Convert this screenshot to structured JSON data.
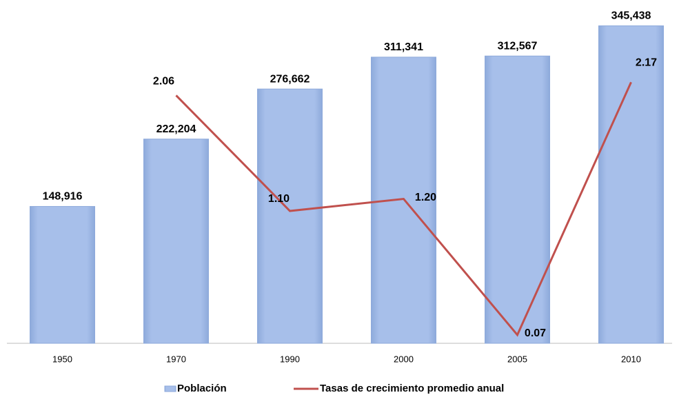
{
  "chart_data": {
    "type": "bar",
    "categories": [
      "1950",
      "1970",
      "1990",
      "2000",
      "2005",
      "2010"
    ],
    "ylim": [
      0,
      360000
    ],
    "y2lim": [
      0,
      2.75
    ],
    "series": [
      {
        "name": "Población",
        "type": "bar",
        "color": "#a7bfea",
        "values": [
          148916,
          222204,
          276662,
          311341,
          312567,
          345438
        ],
        "value_labels": [
          "148,916",
          "222,204",
          "276,662",
          "311,341",
          "312,567",
          "345,438"
        ]
      },
      {
        "name": "Tasas de crecimiento promedio anual",
        "type": "line",
        "axis": "y2",
        "color": "#c0504d",
        "values": [
          null,
          2.06,
          1.1,
          1.2,
          0.07,
          2.17
        ],
        "value_labels": [
          null,
          "2.06",
          "1.10",
          "1.20",
          "0.07",
          "2.17"
        ]
      }
    ],
    "legend": "bottom"
  }
}
